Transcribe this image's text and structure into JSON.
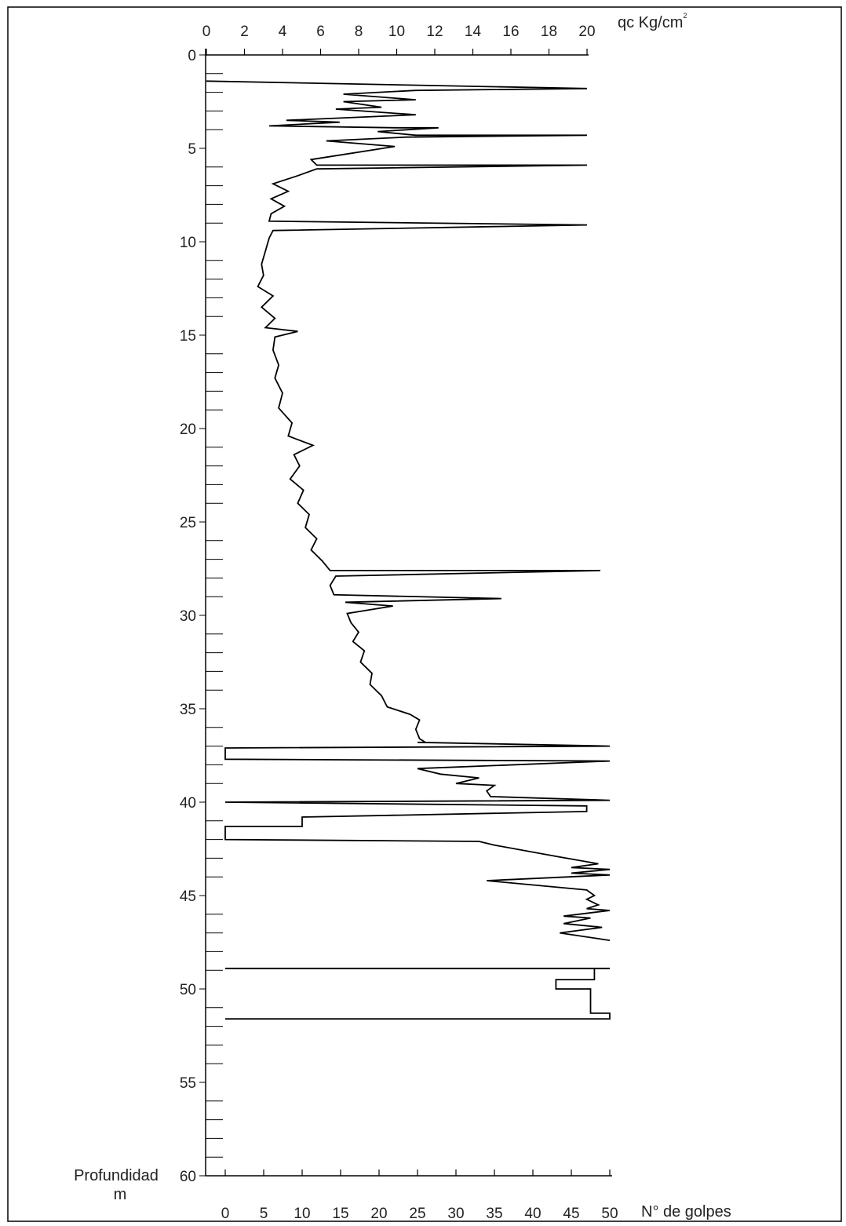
{
  "chart_data": {
    "type": "line",
    "title": "",
    "top_axis": {
      "label": "qc  Kg/cm",
      "label_superscript": "2",
      "range": [
        0,
        20
      ],
      "ticks": [
        "0",
        "2",
        "4",
        "6",
        "8",
        "10",
        "12",
        "14",
        "16",
        "18",
        "20"
      ]
    },
    "bottom_axis": {
      "label": "N° de golpes",
      "range": [
        0,
        50
      ],
      "ticks": [
        "0",
        "5",
        "10",
        "15",
        "20",
        "25",
        "30",
        "35",
        "40",
        "45",
        "50"
      ]
    },
    "depth_axis": {
      "label_line1": "Profundidad",
      "label_line2": "m",
      "range": [
        0,
        60
      ],
      "inverted": true,
      "ticks": [
        "0",
        "5",
        "10",
        "15",
        "20",
        "25",
        "30",
        "35",
        "40",
        "45",
        "50",
        "55",
        "60"
      ]
    },
    "series": [
      {
        "axis": "top",
        "points": [
          [
            0,
            1.4
          ],
          [
            20,
            1.8
          ],
          [
            11,
            1.9
          ],
          [
            7.2,
            2.1
          ],
          [
            11,
            2.4
          ],
          [
            7.2,
            2.5
          ],
          [
            9.2,
            2.8
          ],
          [
            6.8,
            2.9
          ],
          [
            11,
            3.2
          ],
          [
            4.2,
            3.5
          ],
          [
            7,
            3.6
          ],
          [
            3.3,
            3.8
          ],
          [
            10,
            3.9
          ],
          [
            12.2,
            3.9
          ],
          [
            9,
            4.1
          ],
          [
            11,
            4.3
          ],
          [
            20,
            4.3
          ],
          [
            10.5,
            4.4
          ],
          [
            6.3,
            4.6
          ],
          [
            9.9,
            4.9
          ],
          [
            5.5,
            5.6
          ],
          [
            5.8,
            5.9
          ],
          [
            20,
            5.9
          ],
          [
            5.8,
            6.1
          ],
          [
            4.7,
            6.5
          ],
          [
            3.5,
            6.9
          ],
          [
            4.3,
            7.3
          ],
          [
            3.4,
            7.7
          ],
          [
            4.1,
            8.1
          ],
          [
            3.4,
            8.5
          ],
          [
            3.3,
            8.9
          ],
          [
            20,
            9.1
          ],
          [
            3.5,
            9.4
          ],
          [
            3.3,
            9.8
          ],
          [
            3.1,
            10.5
          ],
          [
            2.9,
            11.2
          ],
          [
            3,
            11.8
          ],
          [
            2.7,
            12.4
          ],
          [
            3.5,
            12.9
          ],
          [
            2.9,
            13.5
          ],
          [
            3.6,
            14.1
          ],
          [
            3.1,
            14.6
          ],
          [
            4.8,
            14.8
          ],
          [
            3.6,
            15.1
          ],
          [
            3.5,
            15.8
          ],
          [
            3.8,
            16.6
          ],
          [
            3.6,
            17.3
          ],
          [
            4,
            18.1
          ],
          [
            3.8,
            18.9
          ],
          [
            4.5,
            19.7
          ],
          [
            4.3,
            20.4
          ],
          [
            5.6,
            20.9
          ],
          [
            4.6,
            21.4
          ],
          [
            4.9,
            22
          ],
          [
            4.4,
            22.7
          ],
          [
            5.1,
            23.3
          ],
          [
            4.8,
            24
          ],
          [
            5.4,
            24.6
          ],
          [
            5.2,
            25.3
          ],
          [
            5.8,
            25.9
          ],
          [
            5.5,
            26.5
          ],
          [
            6.1,
            27.1
          ],
          [
            6.5,
            27.6
          ],
          [
            20.7,
            27.6
          ],
          [
            6.8,
            27.9
          ],
          [
            6.5,
            28.4
          ],
          [
            6.7,
            28.9
          ],
          [
            15.5,
            29.1
          ],
          [
            7.3,
            29.3
          ],
          [
            9.8,
            29.5
          ],
          [
            7.4,
            29.9
          ],
          [
            7.6,
            30.4
          ],
          [
            8,
            30.9
          ],
          [
            7.7,
            31.4
          ],
          [
            8.3,
            31.9
          ],
          [
            8.1,
            32.5
          ],
          [
            8.7,
            33.1
          ],
          [
            8.6,
            33.7
          ],
          [
            9.2,
            34.3
          ],
          [
            9.5,
            34.9
          ],
          [
            10.7,
            35.3
          ],
          [
            11.2,
            35.6
          ],
          [
            11,
            36.1
          ],
          [
            11.2,
            36.6
          ],
          [
            11.5,
            36.8
          ]
        ]
      },
      {
        "axis": "bottom",
        "points": [
          [
            25,
            36.8
          ],
          [
            50,
            37
          ],
          [
            0,
            37.1
          ],
          [
            0,
            37.7
          ],
          [
            50,
            37.8
          ],
          [
            25,
            38.2
          ],
          [
            28,
            38.5
          ],
          [
            33,
            38.7
          ],
          [
            30,
            39
          ],
          [
            35,
            39.1
          ],
          [
            34,
            39.4
          ],
          [
            34.5,
            39.7
          ],
          [
            50,
            39.9
          ],
          [
            0,
            40
          ],
          [
            47,
            40.2
          ],
          [
            47,
            40.5
          ],
          [
            10,
            40.8
          ],
          [
            10,
            41.3
          ],
          [
            0,
            41.3
          ],
          [
            0,
            42
          ],
          [
            33,
            42.1
          ],
          [
            35,
            42.3
          ],
          [
            43,
            42.9
          ],
          [
            48.5,
            43.3
          ],
          [
            45,
            43.5
          ],
          [
            50,
            43.6
          ],
          [
            45,
            43.8
          ],
          [
            50,
            43.9
          ],
          [
            34,
            44.2
          ],
          [
            47,
            44.7
          ],
          [
            48,
            45
          ],
          [
            47,
            45.2
          ],
          [
            48.5,
            45.5
          ],
          [
            47,
            45.7
          ],
          [
            50,
            45.8
          ],
          [
            44,
            46.1
          ],
          [
            47.5,
            46.2
          ],
          [
            44,
            46.5
          ],
          [
            49,
            46.7
          ],
          [
            43.5,
            47
          ],
          [
            50,
            47.4
          ]
        ]
      },
      {
        "axis": "bottom",
        "points": [
          [
            0,
            48.9
          ],
          [
            50,
            48.9
          ],
          [
            48,
            48.9
          ],
          [
            48,
            49.5
          ],
          [
            43,
            49.5
          ],
          [
            43,
            50
          ],
          [
            47.5,
            50
          ],
          [
            47.5,
            51.3
          ],
          [
            50,
            51.3
          ],
          [
            50,
            51.6
          ],
          [
            0,
            51.6
          ]
        ]
      }
    ],
    "grid": false,
    "legend": "none"
  }
}
